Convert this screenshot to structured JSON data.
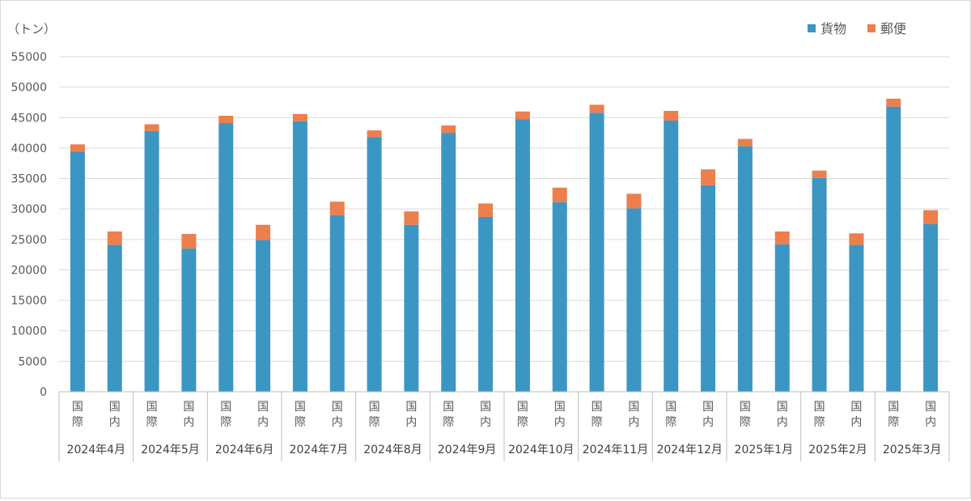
{
  "chart_data": {
    "type": "bar",
    "stacked": true,
    "unit_label": "（トン）",
    "ylim": [
      0,
      55000
    ],
    "yticks": [
      "0",
      "5000",
      "10000",
      "15000",
      "20000",
      "25000",
      "30000",
      "35000",
      "40000",
      "45000",
      "50000",
      "55000"
    ],
    "grid": true,
    "legend_position": "top-right",
    "colors": {
      "cargo": "#3c96c3",
      "mail": "#ec7f4b"
    },
    "months": [
      "2024年4月",
      "2024年5月",
      "2024年6月",
      "2024年7月",
      "2024年8月",
      "2024年9月",
      "2024年10月",
      "2024年11月",
      "2024年12月",
      "2025年1月",
      "2025年2月",
      "2025年3月"
    ],
    "sub_categories": [
      "国際",
      "国内"
    ],
    "series": [
      {
        "name": "貨物",
        "values": [
          39400,
          24100,
          42800,
          23500,
          44100,
          24900,
          44400,
          29000,
          41800,
          27400,
          42500,
          28700,
          44700,
          31100,
          45800,
          30100,
          44500,
          33900,
          40300,
          24200,
          35100,
          24100,
          46800,
          27500
        ]
      },
      {
        "name": "郵便",
        "values": [
          1200,
          2200,
          1100,
          2400,
          1200,
          2500,
          1200,
          2200,
          1100,
          2200,
          1200,
          2200,
          1300,
          2400,
          1300,
          2400,
          1600,
          2600,
          1200,
          2100,
          1200,
          1900,
          1300,
          2300
        ]
      }
    ]
  }
}
